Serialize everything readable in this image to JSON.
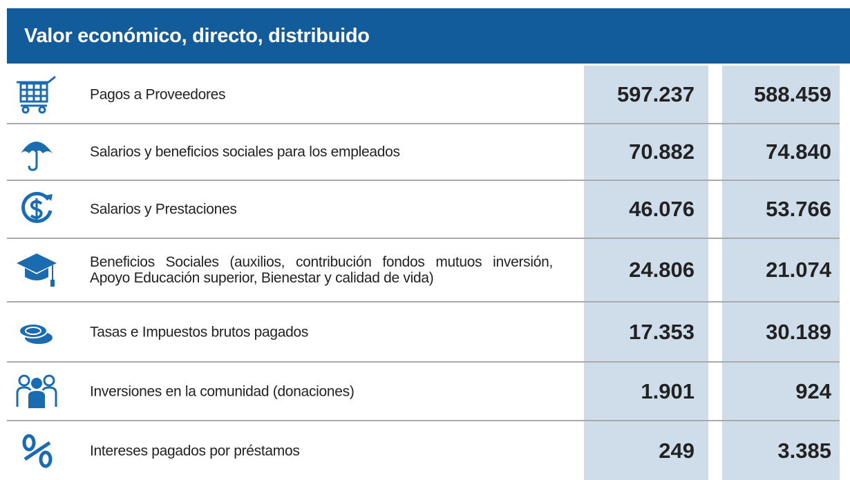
{
  "header": {
    "title": "Valor económico, directo, distribuido"
  },
  "table": {
    "rows": [
      [
        "Pagos a Proveedores",
        "597.237",
        "588.459"
      ],
      [
        "Salarios y beneficios sociales para los empleados",
        "70.882",
        "74.840"
      ],
      [
        "Salarios y Prestaciones",
        "46.076",
        "53.766"
      ],
      [
        "Beneficios Sociales (auxilios, contribución fondos mutuos inversión, Apoyo Educación superior, Bienestar y calidad de vida)",
        "24.806",
        "21.074"
      ],
      [
        "Tasas e Impuestos brutos pagados",
        "17.353",
        "30.189"
      ],
      [
        "Inversiones en la comunidad (donaciones)",
        "1.901",
        "924"
      ],
      [
        "Intereses pagados por préstamos",
        "249",
        "3.385"
      ]
    ]
  }
}
